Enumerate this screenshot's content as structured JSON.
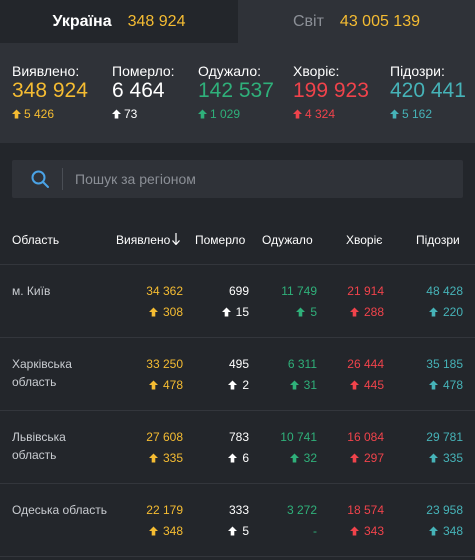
{
  "tabs": [
    {
      "name": "Україна",
      "count": "348 924"
    },
    {
      "name": "Світ",
      "count": "43 005 139"
    }
  ],
  "stats": [
    {
      "label": "Виявлено:",
      "value": "348 924",
      "delta": "5 426",
      "color": "#f5bc32",
      "arrow_color": "#f5bc32"
    },
    {
      "label": "Померло:",
      "value": "6 464",
      "delta": "73",
      "color": "#ffffff",
      "arrow_color": "#ffffff"
    },
    {
      "label": "Одужало:",
      "value": "142 537",
      "delta": "1 029",
      "color": "#2fb07a",
      "arrow_color": "#2fb07a"
    },
    {
      "label": "Хворіє:",
      "value": "199 923",
      "delta": "4 324",
      "color": "#f0434b",
      "arrow_color": "#f0434b"
    },
    {
      "label": "Підозри:",
      "value": "420 441",
      "delta": "5 162",
      "color": "#46b3b8",
      "arrow_color": "#46b3b8"
    }
  ],
  "search": {
    "placeholder": "Пошук за регіоном",
    "icon": "search-icon"
  },
  "table": {
    "headers": {
      "region": "Область",
      "detected": "Виявлено",
      "died": "Померло",
      "recovered": "Одужало",
      "sick": "Хворіє",
      "suspected": "Підозри"
    },
    "rows": [
      {
        "region": "м. Київ",
        "detected": "34 362",
        "detected_delta": "308",
        "died": "699",
        "died_delta": "15",
        "recovered": "11 749",
        "recovered_delta": "5",
        "sick": "21 914",
        "sick_delta": "288",
        "suspected": "48 428",
        "suspected_delta": "220"
      },
      {
        "region": "Харківська область",
        "detected": "33 250",
        "detected_delta": "478",
        "died": "495",
        "died_delta": "2",
        "recovered": "6 311",
        "recovered_delta": "31",
        "sick": "26 444",
        "sick_delta": "445",
        "suspected": "35 185",
        "suspected_delta": "478"
      },
      {
        "region": "Львівська область",
        "detected": "27 608",
        "detected_delta": "335",
        "died": "783",
        "died_delta": "6",
        "recovered": "10 741",
        "recovered_delta": "32",
        "sick": "16 084",
        "sick_delta": "297",
        "suspected": "29 781",
        "suspected_delta": "335"
      },
      {
        "region": "Одеська область",
        "detected": "22 179",
        "detected_delta": "348",
        "died": "333",
        "died_delta": "5",
        "recovered": "3 272",
        "recovered_delta": "-",
        "sick": "18 574",
        "sick_delta": "343",
        "suspected": "23 958",
        "suspected_delta": "348"
      }
    ]
  }
}
